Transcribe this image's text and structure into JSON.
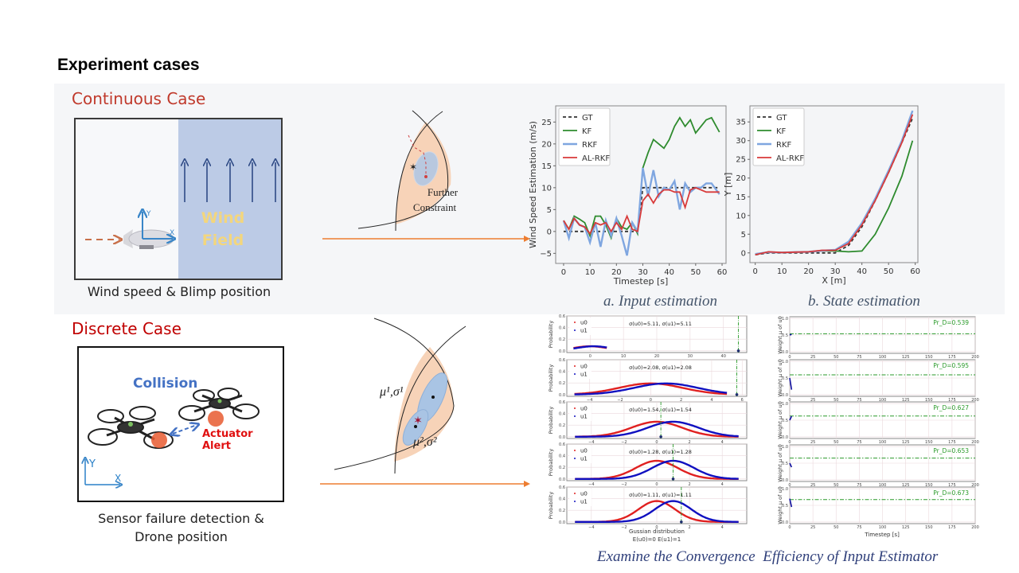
{
  "slide": {
    "title": "Experiment cases",
    "continuous_case": "Continuous Case",
    "discrete_case": "Discrete Case"
  },
  "continuous_scene": {
    "wind_label_1": "Wind",
    "wind_label_2": "Field",
    "axis_y": "Y",
    "axis_x": "X",
    "caption": "Wind speed & Blimp position",
    "constraint_label_1": "Further",
    "constraint_label_2": "Constraint"
  },
  "discrete_scene": {
    "collision_label": "Collision",
    "alert_label": "Actuator Alert",
    "axis_y": "Y",
    "axis_x": "X",
    "caption_1": "Sensor failure detection &",
    "caption_2": "Drone position",
    "gaussian_label_1": "μ¹,σ¹",
    "gaussian_label_2": "μ²,σ²"
  },
  "captions": {
    "input": "a. Input estimation",
    "state": "b. State estimation",
    "convergence": "Examine the Convergence  Efficiency of Input Estimator"
  },
  "colors": {
    "accent_red": "#c0392b",
    "arrow_orange": "#ed7d31",
    "wind_blue": "#bccbe6",
    "caption_blue": "#44546a"
  },
  "chart_data": [
    {
      "id": "input",
      "type": "line",
      "title": "a. Input estimation",
      "xlabel": "Timestep [s]",
      "ylabel": "Wind Speed Estimation (m/s)",
      "xlim": [
        -3,
        61.5
      ],
      "ylim": [
        -7.3,
        28.7
      ],
      "xticks": [
        0,
        10,
        20,
        30,
        40,
        50,
        60
      ],
      "yticks": [
        -5,
        0,
        5,
        10,
        15,
        20,
        25
      ],
      "legend": "top-left",
      "grid": false,
      "x": [
        0,
        2,
        4,
        6,
        8,
        10,
        12,
        14,
        16,
        18,
        20,
        22,
        24,
        26,
        28,
        30,
        32,
        34,
        36,
        38,
        40,
        42,
        44,
        46,
        48,
        50,
        52,
        54,
        56,
        59
      ],
      "series": [
        {
          "name": "GT",
          "color": "#333333",
          "dash": true,
          "values": [
            0,
            0,
            0,
            0,
            0,
            0,
            0,
            0,
            0,
            0,
            0,
            0,
            0,
            0,
            0,
            10,
            10,
            10,
            10,
            10,
            10,
            10,
            10,
            10,
            10,
            10,
            10,
            10,
            10,
            10
          ]
        },
        {
          "name": "KF",
          "color": "#2e8b2e",
          "dash": false,
          "values": [
            2.5,
            0.5,
            3.5,
            2.8,
            2,
            -1,
            3.5,
            3.5,
            1.5,
            -1.5,
            3,
            1,
            0.5,
            2,
            -0.5,
            14.5,
            18,
            21,
            20,
            19,
            21,
            24,
            26,
            24,
            25.5,
            22.5,
            24,
            25.5,
            26,
            22.7
          ]
        },
        {
          "name": "RKF",
          "color": "#7fa6e0",
          "dash": false,
          "values": [
            2.5,
            -1.5,
            3,
            1.5,
            1,
            -2.5,
            2,
            -3.5,
            2.5,
            -1,
            3,
            -1,
            -5.5,
            2,
            0,
            14.5,
            8,
            14,
            8,
            10,
            9.5,
            11.5,
            5,
            11,
            9,
            10,
            10,
            11,
            11,
            8.5
          ]
        },
        {
          "name": "AL-RKF",
          "color": "#d83a3a",
          "dash": false,
          "values": [
            2.5,
            0.5,
            3,
            1.5,
            1,
            -0.5,
            2,
            1.5,
            2,
            0,
            2,
            0.5,
            3.5,
            0.5,
            0,
            7,
            8.5,
            6.5,
            8.5,
            9.5,
            9.5,
            9,
            9,
            5.5,
            9.5,
            10,
            9.5,
            9,
            9,
            9
          ]
        }
      ]
    },
    {
      "id": "state",
      "type": "line",
      "title": "b. State estimation",
      "xlabel": "X [m]",
      "ylabel": "Y [m]",
      "xlim": [
        -2,
        61
      ],
      "ylim": [
        -2.6,
        39.3
      ],
      "xticks": [
        0,
        10,
        20,
        30,
        40,
        50,
        60
      ],
      "yticks": [
        0,
        5,
        10,
        15,
        20,
        25,
        30,
        35
      ],
      "legend": "top-left",
      "grid": false,
      "x": [
        0,
        5,
        10,
        15,
        20,
        25,
        30,
        35,
        40,
        45,
        50,
        55,
        59
      ],
      "series": [
        {
          "name": "GT",
          "color": "#333333",
          "dash": true,
          "values": [
            -0.5,
            0,
            0,
            0,
            0,
            0,
            0,
            2,
            7,
            14,
            21.5,
            29.5,
            36
          ]
        },
        {
          "name": "KF",
          "color": "#2e8b2e",
          "dash": false,
          "values": [
            -0.3,
            0.2,
            0.1,
            0.2,
            0.3,
            0.5,
            0.5,
            0.3,
            0.5,
            5,
            12,
            20.5,
            30
          ]
        },
        {
          "name": "RKF",
          "color": "#7fa6e0",
          "dash": false,
          "values": [
            -0.3,
            0.2,
            0.1,
            0.2,
            0.3,
            0.6,
            0.8,
            3,
            8,
            14.5,
            22,
            30,
            38
          ]
        },
        {
          "name": "AL-RKF",
          "color": "#d83a3a",
          "dash": false,
          "values": [
            -0.5,
            0.3,
            0.1,
            0.2,
            0.3,
            0.7,
            0.7,
            2.5,
            7.5,
            14,
            21.5,
            29.5,
            37
          ]
        }
      ]
    },
    {
      "id": "gaussian",
      "type": "scatter",
      "xlabel": "Gussian distribution",
      "xlabel2": "E(u0)=0 E(u1)=1",
      "ylabel": "Probability",
      "ylim": [
        -0.03,
        0.6
      ],
      "yticks": [
        "0.0",
        "0.2",
        "0.4",
        "0.6"
      ],
      "legend": [
        "u0",
        "u1"
      ],
      "series_colors": [
        "#e02020",
        "#1010c0"
      ],
      "means": [
        0,
        1
      ],
      "subplots": [
        {
          "sigma": 5.11,
          "label": "σ(u0)=5.11, σ(u1)=5.11",
          "vline": 44.5,
          "xlim": [
            -7,
            47
          ],
          "xticks": [
            0,
            10,
            20,
            30,
            40
          ]
        },
        {
          "sigma": 2.08,
          "label": "σ(u0)=2.08, σ(u1)=2.08",
          "vline": 5.65,
          "xlim": [
            -5.5,
            6.3
          ],
          "xticks": [
            -4,
            -2,
            0,
            2,
            4,
            6
          ]
        },
        {
          "sigma": 1.54,
          "label": "σ(u0)=1.54, σ(u1)=1.54",
          "vline": 0.25,
          "xlim": [
            -5.5,
            5.5
          ],
          "xticks": [
            -4,
            -2,
            0,
            2,
            4
          ]
        },
        {
          "sigma": 1.28,
          "label": "σ(u0)=1.28, σ(u1)=1.28",
          "vline": 1.0,
          "xlim": [
            -5.5,
            5.5
          ],
          "xticks": [
            -4,
            -2,
            0,
            2,
            4
          ]
        },
        {
          "sigma": 1.11,
          "label": "σ(u0)=1.11, σ(u1)=1.11",
          "vline": 1.5,
          "xlim": [
            -5.5,
            5.5
          ],
          "xticks": [
            -4,
            -2,
            0,
            2,
            4
          ]
        }
      ]
    },
    {
      "id": "weights",
      "type": "line",
      "xlabel": "Timestep [s]",
      "ylabel": "Weight μ of u0",
      "xlim": [
        0,
        200
      ],
      "ylim": [
        -0.05,
        1.05
      ],
      "xticks": [
        0,
        25,
        50,
        75,
        100,
        125,
        150,
        175,
        200
      ],
      "yticks": [
        "0.0",
        "0.5",
        "1.0"
      ],
      "subplots": [
        {
          "pr_d": 0.539,
          "label": "Pr_D=0.539",
          "start": [
            0.5,
            0.52
          ]
        },
        {
          "pr_d": 0.595,
          "label": "Pr_D=0.595",
          "start": [
            0.5,
            0.15
          ]
        },
        {
          "pr_d": 0.627,
          "label": "Pr_D=0.627",
          "start": [
            0.5,
            0.62
          ]
        },
        {
          "pr_d": 0.653,
          "label": "Pr_D=0.653",
          "start": [
            0.5,
            0.38
          ]
        },
        {
          "pr_d": 0.673,
          "label": "Pr_D=0.673",
          "start": [
            0.7,
            0.45
          ]
        }
      ]
    }
  ]
}
